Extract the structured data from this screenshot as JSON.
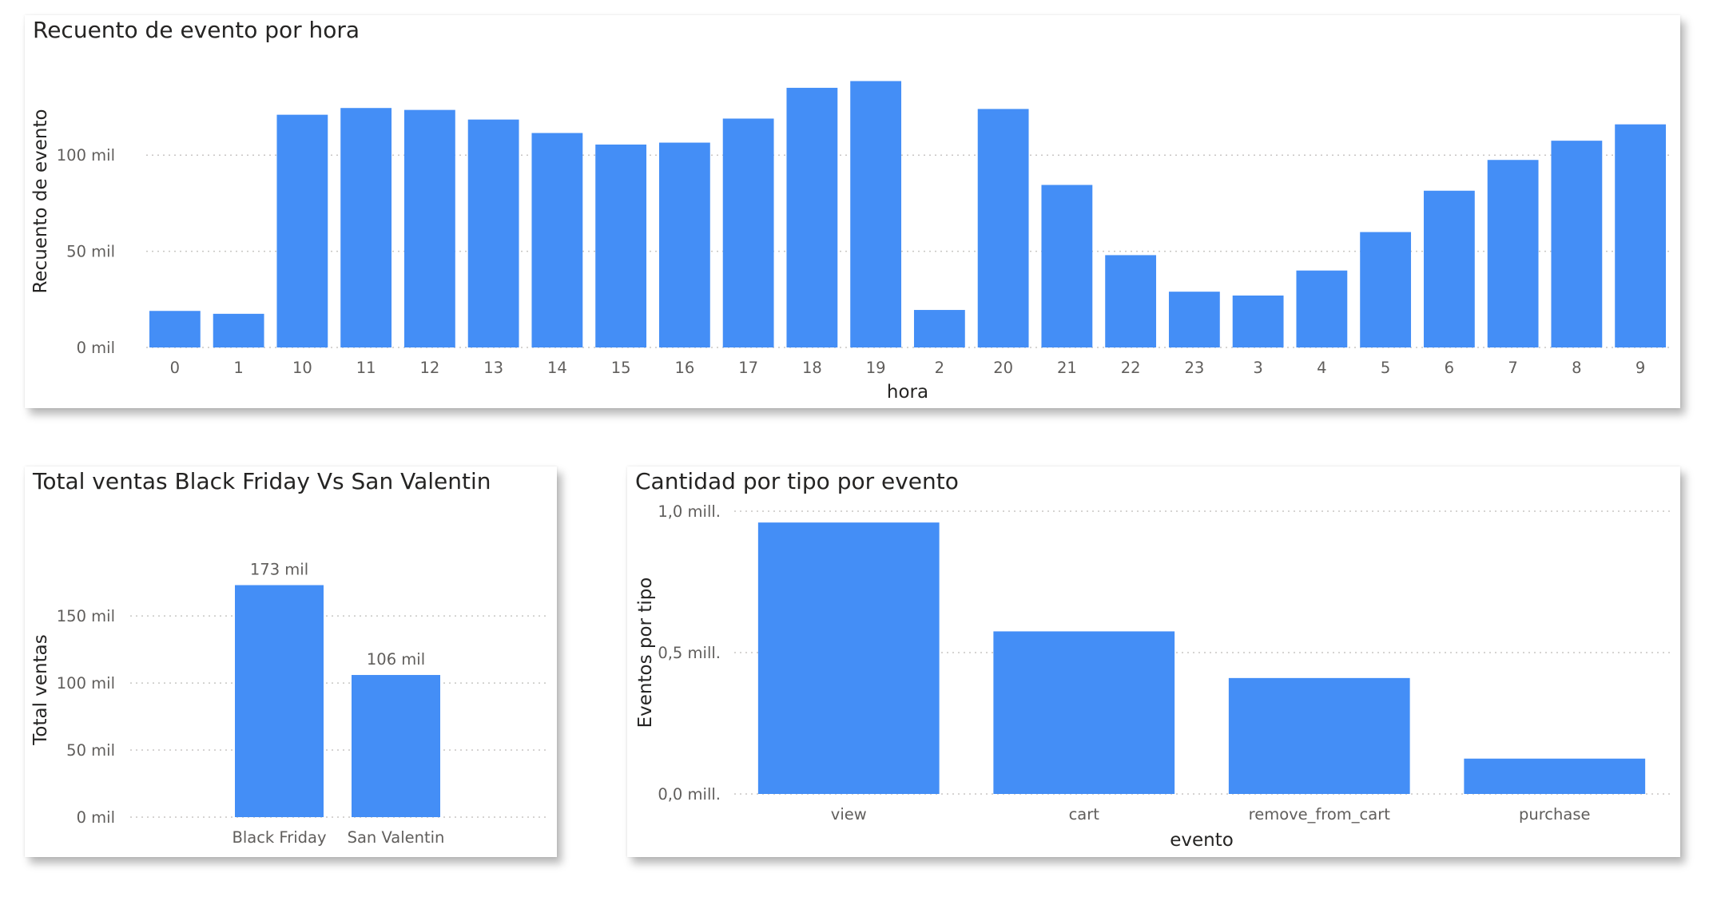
{
  "colors": {
    "bar": "#448ef6",
    "grid": "#c8c6c4",
    "tick": "#605e5c",
    "title": "#252423"
  },
  "chart_data": [
    {
      "id": "hourly",
      "type": "bar",
      "title": "Recuento de evento por hora",
      "xlabel": "hora",
      "ylabel": "Recuento de evento",
      "ylim": [
        0,
        152000
      ],
      "yticks": [
        {
          "value": 0,
          "label": "0 mil"
        },
        {
          "value": 50000,
          "label": "50 mil"
        },
        {
          "value": 100000,
          "label": "100 mil"
        }
      ],
      "grid": true,
      "categories": [
        "0",
        "1",
        "10",
        "11",
        "12",
        "13",
        "14",
        "15",
        "16",
        "17",
        "18",
        "19",
        "2",
        "20",
        "21",
        "22",
        "23",
        "3",
        "4",
        "5",
        "6",
        "7",
        "8",
        "9"
      ],
      "values": [
        19000,
        17500,
        121000,
        124500,
        123500,
        118500,
        111500,
        105500,
        106500,
        119000,
        135000,
        138500,
        19500,
        124000,
        84500,
        48000,
        29000,
        27000,
        40000,
        60000,
        81500,
        97500,
        107500,
        116000
      ]
    },
    {
      "id": "sales",
      "type": "bar",
      "title": "Total ventas Black Friday Vs San Valentin",
      "xlabel": "",
      "ylabel": "Total ventas",
      "ylim": [
        0,
        190000
      ],
      "yticks": [
        {
          "value": 0,
          "label": "0 mil"
        },
        {
          "value": 50000,
          "label": "50 mil"
        },
        {
          "value": 100000,
          "label": "100 mil"
        },
        {
          "value": 150000,
          "label": "150 mil"
        }
      ],
      "grid": true,
      "categories": [
        "Black Friday",
        "San Valentin"
      ],
      "values": [
        173000,
        106000
      ],
      "data_labels": [
        "173 mil",
        "106 mil"
      ]
    },
    {
      "id": "events",
      "type": "bar",
      "title": "Cantidad por tipo por evento",
      "xlabel": "evento",
      "ylabel": "Eventos por tipo",
      "ylim": [
        0,
        1000000
      ],
      "yticks": [
        {
          "value": 0,
          "label": "0,0 mill."
        },
        {
          "value": 500000,
          "label": "0,5 mill."
        },
        {
          "value": 1000000,
          "label": "1,0 mill."
        }
      ],
      "grid": true,
      "categories": [
        "view",
        "cart",
        "remove_from_cart",
        "purchase"
      ],
      "values": [
        960000,
        575000,
        410000,
        125000
      ]
    }
  ]
}
